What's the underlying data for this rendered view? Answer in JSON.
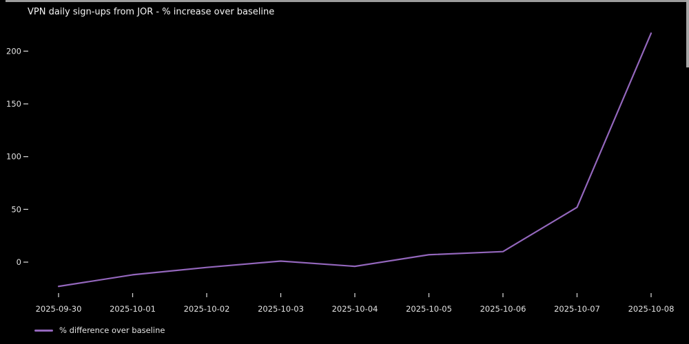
{
  "theme": {
    "background": "#000000",
    "title_color": "#f5f5f5",
    "text_color": "#e3e3e3",
    "tick_color": "#cfcfcf",
    "line_color": "#9467bd"
  },
  "chart_data": {
    "type": "line",
    "title": "VPN daily sign-ups from JOR - % increase over baseline",
    "categories": [
      "2025-09-30",
      "2025-10-01",
      "2025-10-02",
      "2025-10-03",
      "2025-10-04",
      "2025-10-05",
      "2025-10-06",
      "2025-10-07",
      "2025-10-08"
    ],
    "series": [
      {
        "name": "% difference over baseline",
        "values": [
          -23,
          -12,
          -5,
          1,
          -4,
          7,
          10,
          52,
          217
        ]
      }
    ],
    "xlabel": "",
    "ylabel": "",
    "yticks": [
      0,
      50,
      100,
      150,
      200
    ],
    "ylim": [
      -35,
      230
    ],
    "grid": false,
    "legend_position": "lower-left"
  }
}
